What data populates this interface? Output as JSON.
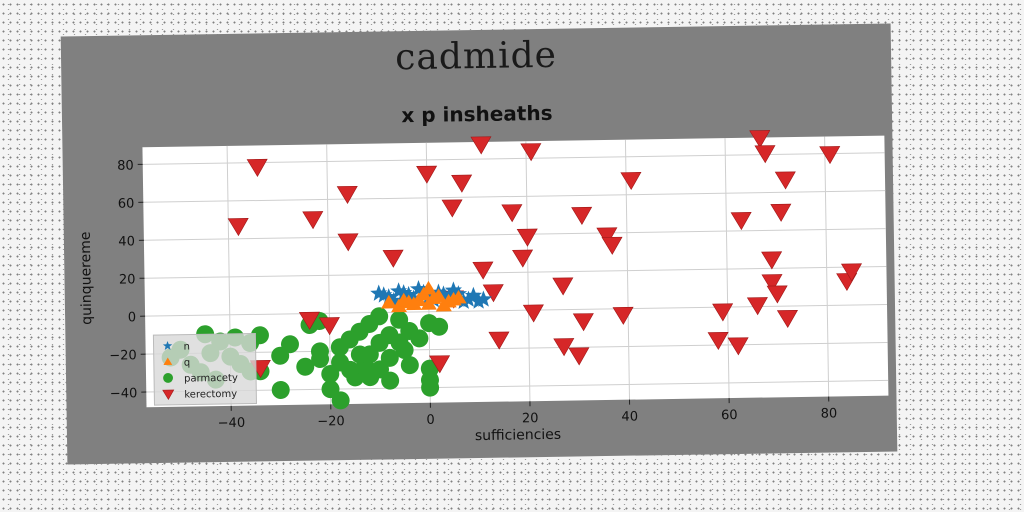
{
  "chart_data": {
    "type": "scatter",
    "suptitle": "cadmide",
    "title": "x p insheaths",
    "xlabel": "sufficiencies",
    "ylabel": "quinquereme",
    "xlim": [
      -57,
      92
    ],
    "ylim": [
      -48,
      89
    ],
    "xticks": [
      -40,
      -20,
      0,
      20,
      40,
      60,
      80
    ],
    "yticks": [
      -40,
      -20,
      0,
      20,
      40,
      60,
      80
    ],
    "grid": true,
    "legend_position": "lower-left",
    "series": [
      {
        "name": "n",
        "marker": "star",
        "color": "#1f77b4",
        "points": [
          [
            -10,
            10
          ],
          [
            -8,
            8
          ],
          [
            -6,
            11
          ],
          [
            -4,
            9
          ],
          [
            -2,
            12
          ],
          [
            0,
            8
          ],
          [
            2,
            10
          ],
          [
            4,
            7
          ],
          [
            6,
            9
          ],
          [
            8,
            6
          ],
          [
            10,
            5
          ],
          [
            -7,
            6
          ],
          [
            -3,
            7
          ],
          [
            1,
            6
          ],
          [
            5,
            11
          ],
          [
            9,
            8
          ],
          [
            -5,
            10
          ],
          [
            3,
            9
          ],
          [
            7,
            5
          ],
          [
            11,
            6
          ],
          [
            -1,
            10
          ],
          [
            -9,
            9
          ]
        ]
      },
      {
        "name": "q",
        "marker": "triangle-up",
        "color": "#ff7f0e",
        "points": [
          [
            -6,
            3
          ],
          [
            -4,
            5
          ],
          [
            -2,
            6
          ],
          [
            0,
            4
          ],
          [
            2,
            8
          ],
          [
            4,
            5
          ],
          [
            6,
            7
          ],
          [
            -5,
            6
          ],
          [
            -3,
            4
          ],
          [
            1,
            7
          ],
          [
            3,
            3
          ],
          [
            5,
            6
          ],
          [
            -1,
            9
          ],
          [
            0,
            12
          ],
          [
            -8,
            5
          ]
        ]
      },
      {
        "name": "parmacety",
        "marker": "circle",
        "color": "#2ca02c",
        "points": [
          [
            -45,
            -10
          ],
          [
            -42,
            -14
          ],
          [
            -39,
            -12
          ],
          [
            -36,
            -15
          ],
          [
            -34,
            -11
          ],
          [
            -30,
            -22
          ],
          [
            -28,
            -16
          ],
          [
            -25,
            -28
          ],
          [
            -22,
            -24
          ],
          [
            -44,
            -20
          ],
          [
            -40,
            -22
          ],
          [
            -38,
            -26
          ],
          [
            -36,
            -30
          ],
          [
            -48,
            -26
          ],
          [
            -46,
            -30
          ],
          [
            -50,
            -18
          ],
          [
            -52,
            -22
          ],
          [
            -43,
            -34
          ],
          [
            -34,
            -30
          ],
          [
            -30,
            -40
          ],
          [
            -20,
            -32
          ],
          [
            -18,
            -26
          ],
          [
            -15,
            -34
          ],
          [
            -13,
            -28
          ],
          [
            -10,
            -30
          ],
          [
            -20,
            -40
          ],
          [
            -18,
            -46
          ],
          [
            -12,
            -22
          ],
          [
            -8,
            -24
          ],
          [
            -5,
            -20
          ],
          [
            -2,
            -14
          ],
          [
            -4,
            -10
          ],
          [
            0,
            -6
          ],
          [
            2,
            -8
          ],
          [
            -6,
            -4
          ],
          [
            -10,
            -2
          ],
          [
            -12,
            -6
          ],
          [
            -14,
            -10
          ],
          [
            -16,
            -14
          ],
          [
            -18,
            -18
          ],
          [
            -22,
            -20
          ],
          [
            -8,
            -12
          ],
          [
            -10,
            -16
          ],
          [
            -6,
            -16
          ],
          [
            0,
            -30
          ],
          [
            0,
            -36
          ],
          [
            0,
            -40
          ],
          [
            -14,
            -22
          ],
          [
            -12,
            -34
          ],
          [
            -16,
            -30
          ],
          [
            -24,
            -6
          ],
          [
            -22,
            -4
          ],
          [
            -8,
            -36
          ],
          [
            -4,
            -28
          ]
        ]
      },
      {
        "name": "kerectomy",
        "marker": "triangle-down",
        "color": "#d62728",
        "points": [
          [
            -34,
            78
          ],
          [
            -38,
            47
          ],
          [
            -23,
            50
          ],
          [
            -16,
            63
          ],
          [
            -16,
            38
          ],
          [
            -7,
            29
          ],
          [
            0,
            73
          ],
          [
            5,
            55
          ],
          [
            7,
            68
          ],
          [
            11,
            88
          ],
          [
            21,
            84
          ],
          [
            11,
            22
          ],
          [
            13,
            10
          ],
          [
            17,
            52
          ],
          [
            19,
            28
          ],
          [
            20,
            39
          ],
          [
            21,
            -1
          ],
          [
            14,
            -15
          ],
          [
            27,
            13
          ],
          [
            27,
            -19
          ],
          [
            30,
            -24
          ],
          [
            31,
            -6
          ],
          [
            31,
            50
          ],
          [
            36,
            39
          ],
          [
            37,
            34
          ],
          [
            39,
            -3
          ],
          [
            41,
            68
          ],
          [
            58,
            -17
          ],
          [
            59,
            -2
          ],
          [
            62,
            -20
          ],
          [
            63,
            46
          ],
          [
            66,
            1
          ],
          [
            67,
            89
          ],
          [
            68,
            81
          ],
          [
            69,
            25
          ],
          [
            69,
            13
          ],
          [
            70,
            7
          ],
          [
            71,
            50
          ],
          [
            72,
            67
          ],
          [
            72,
            -6
          ],
          [
            81,
            80
          ],
          [
            84,
            13
          ],
          [
            85,
            18
          ],
          [
            2,
            -27
          ],
          [
            -24,
            -3
          ],
          [
            -20,
            -6
          ],
          [
            -34,
            -28
          ],
          [
            5,
            7
          ]
        ]
      }
    ]
  }
}
